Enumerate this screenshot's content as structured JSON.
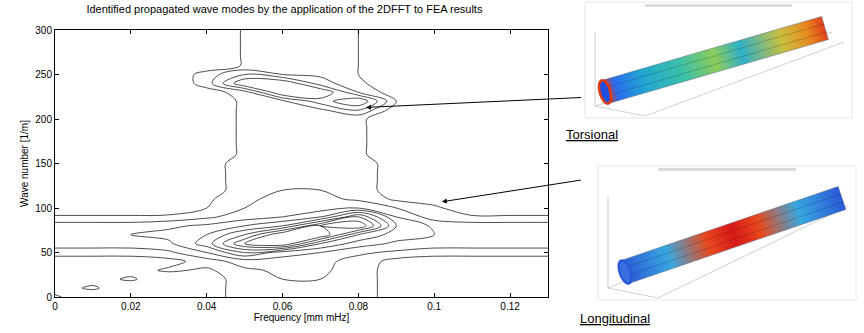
{
  "chart_data": {
    "type": "contour",
    "title": "Identified propagated wave modes by the application of the 2DFFT to FEA results",
    "x_label": "Frequency [mm mHz]",
    "y_label": "Wave number [1/m]",
    "xlim": [
      0,
      0.13
    ],
    "xticks": [
      0,
      0.02,
      0.04,
      0.06,
      0.08,
      0.1,
      0.12
    ],
    "ylim": [
      0,
      300
    ],
    "yticks": [
      0,
      50,
      100,
      150,
      200,
      250,
      300
    ],
    "color": "#000000",
    "contour_levels": [
      1,
      2,
      3,
      4,
      5,
      6,
      7,
      8,
      9
    ],
    "x": [
      0,
      0.01,
      0.02,
      0.03,
      0.04,
      0.05,
      0.06,
      0.07,
      0.08,
      0.09,
      0.1,
      0.11,
      0.12,
      0.13
    ],
    "y": [
      0,
      10,
      20,
      30,
      40,
      50,
      60,
      70,
      80,
      90,
      100,
      110,
      120,
      130,
      140,
      150,
      160,
      170,
      180,
      190,
      200,
      210,
      220,
      230,
      240,
      250,
      260,
      270,
      280,
      290,
      300
    ],
    "z": [
      [
        1.2,
        0,
        0,
        0,
        0.5,
        1.5,
        2,
        2,
        1.5,
        0.5,
        0,
        0,
        0,
        0
      ],
      [
        0.5,
        1.2,
        0,
        0,
        0.5,
        1.5,
        2,
        2,
        1.5,
        0.5,
        0,
        0,
        0,
        0
      ],
      [
        0,
        0.5,
        1.2,
        0,
        0.5,
        1.5,
        2,
        2,
        1.5,
        0.5,
        0,
        0,
        0,
        0
      ],
      [
        0,
        0,
        0.5,
        1.2,
        0.8,
        1.8,
        2.2,
        2.2,
        1.5,
        0.5,
        0,
        0,
        0,
        0
      ],
      [
        0.3,
        0.3,
        0.3,
        0.6,
        1.5,
        2.5,
        2.5,
        2.3,
        1.6,
        0.6,
        0.3,
        0.3,
        0.3,
        0.3
      ],
      [
        1.5,
        1.5,
        1.5,
        1.8,
        3,
        5,
        3.5,
        3,
        2.2,
        1.8,
        1.5,
        1.5,
        1.5,
        1.5
      ],
      [
        2.5,
        2.5,
        2.5,
        2.8,
        4.5,
        8,
        9,
        5,
        3.5,
        2.8,
        2.5,
        2.5,
        2.5,
        2.5
      ],
      [
        3,
        3,
        3,
        3.3,
        4,
        6,
        9,
        9,
        5,
        3.5,
        3,
        3,
        3,
        3
      ],
      [
        2.5,
        2.5,
        2.5,
        2.8,
        3.2,
        4,
        5,
        8,
        9,
        4,
        2.8,
        2.5,
        2.5,
        2.5
      ],
      [
        1.2,
        1.2,
        1.2,
        1.3,
        1.8,
        2.5,
        3,
        4,
        7,
        3,
        1.5,
        1.2,
        1.2,
        1.2
      ],
      [
        0,
        0,
        0,
        0,
        1,
        2,
        2.5,
        2.5,
        3,
        2,
        1.3,
        0,
        0,
        0
      ],
      [
        0,
        0,
        0,
        0,
        0.8,
        1.8,
        2.3,
        2.3,
        1.8,
        0.8,
        0.3,
        0,
        0,
        0
      ],
      [
        0,
        0,
        0,
        0,
        0.5,
        1.5,
        2,
        2,
        1.5,
        0.5,
        0,
        0,
        0,
        0
      ],
      [
        0,
        0,
        0,
        0,
        0.5,
        1.5,
        2,
        2,
        1.5,
        0.5,
        0,
        0,
        0,
        0
      ],
      [
        0,
        0,
        0,
        0,
        0.5,
        1.5,
        2,
        2,
        1.5,
        0.5,
        0,
        0,
        0,
        0
      ],
      [
        0,
        0,
        0,
        0,
        0.5,
        1.5,
        2,
        2,
        1.5,
        0.5,
        0,
        0,
        0,
        0
      ],
      [
        0,
        0,
        0,
        0,
        0.3,
        1.2,
        1.8,
        1.8,
        1.2,
        0.3,
        0,
        0,
        0,
        0
      ],
      [
        0,
        0,
        0,
        0,
        0.3,
        1.2,
        1.8,
        1.8,
        1.2,
        0.3,
        0,
        0,
        0,
        0
      ],
      [
        0,
        0,
        0,
        0,
        0.3,
        1.2,
        1.8,
        1.8,
        1.2,
        0.3,
        0,
        0,
        0,
        0
      ],
      [
        0,
        0,
        0,
        0,
        0.3,
        1.2,
        1.8,
        1.8,
        1.2,
        0.3,
        0,
        0,
        0,
        0
      ],
      [
        0,
        0,
        0,
        0,
        0.3,
        1.2,
        1.8,
        1.8,
        1.2,
        0.3,
        0,
        0,
        0,
        0
      ],
      [
        0,
        0,
        0,
        0,
        0.3,
        1.2,
        1.8,
        1.8,
        3,
        0.3,
        0,
        0,
        0,
        0
      ],
      [
        0,
        0,
        0,
        0,
        0.3,
        1.2,
        1.8,
        3.5,
        5,
        1,
        0,
        0,
        0,
        0
      ],
      [
        0,
        0,
        0,
        0,
        0.5,
        1.5,
        5,
        5,
        2,
        0.3,
        0,
        0,
        0,
        0
      ],
      [
        0,
        0,
        0,
        0,
        1.5,
        5,
        5,
        2.5,
        1.2,
        0.3,
        0,
        0,
        0,
        0
      ],
      [
        0,
        0,
        0,
        0,
        1.5,
        3,
        2,
        1.8,
        1,
        0.2,
        0,
        0,
        0,
        0
      ],
      [
        0,
        0,
        0,
        0,
        0.2,
        1.1,
        1.6,
        1.6,
        1,
        0.2,
        0,
        0,
        0,
        0
      ],
      [
        0,
        0,
        0,
        0,
        0.2,
        1.1,
        1.6,
        1.6,
        1,
        0.2,
        0,
        0,
        0,
        0
      ],
      [
        0,
        0,
        0,
        0,
        0.2,
        1.1,
        1.6,
        1.6,
        1,
        0.2,
        0,
        0,
        0,
        0
      ],
      [
        0,
        0,
        0,
        0,
        0.2,
        1.1,
        1.6,
        1.6,
        1,
        0.2,
        0,
        0,
        0,
        0
      ],
      [
        0,
        0,
        0,
        0,
        0.2,
        1.1,
        1.6,
        1.6,
        1,
        0.2,
        0,
        0,
        0,
        0
      ]
    ],
    "annotations": [
      {
        "text": "Torsional",
        "x": 0.082,
        "y": 213
      },
      {
        "text": "Longitudinal",
        "x": 0.102,
        "y": 107
      }
    ]
  }
}
